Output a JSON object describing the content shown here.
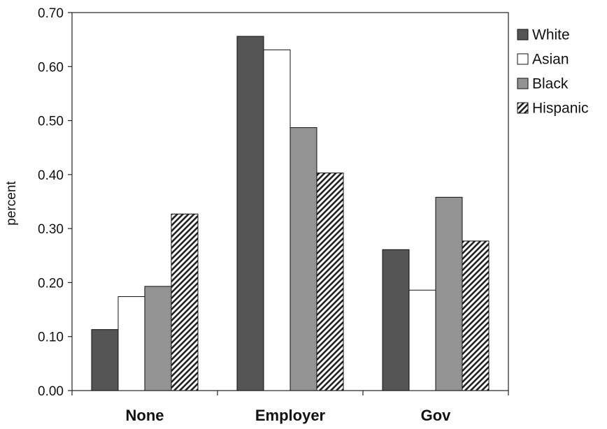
{
  "chart_data": {
    "type": "bar",
    "title": "",
    "xlabel": "",
    "ylabel": "percent",
    "categories": [
      "None",
      "Employer",
      "Gov"
    ],
    "ylim": [
      0,
      0.7
    ],
    "yticks": [
      "0.00",
      "0.10",
      "0.20",
      "0.30",
      "0.40",
      "0.50",
      "0.60",
      "0.70"
    ],
    "grid": false,
    "legend_position": "right",
    "series": [
      {
        "name": "White",
        "fill": "#555555",
        "pattern": "solid",
        "values": [
          0.113,
          0.656,
          0.261
        ]
      },
      {
        "name": "Asian",
        "fill": "#ffffff",
        "pattern": "solid",
        "values": [
          0.174,
          0.631,
          0.186
        ]
      },
      {
        "name": "Black",
        "fill": "#939393",
        "pattern": "solid",
        "values": [
          0.193,
          0.487,
          0.358
        ]
      },
      {
        "name": "Hispanic",
        "fill": "#ffffff",
        "pattern": "diagonal-hatch",
        "values": [
          0.327,
          0.403,
          0.277
        ]
      }
    ]
  }
}
